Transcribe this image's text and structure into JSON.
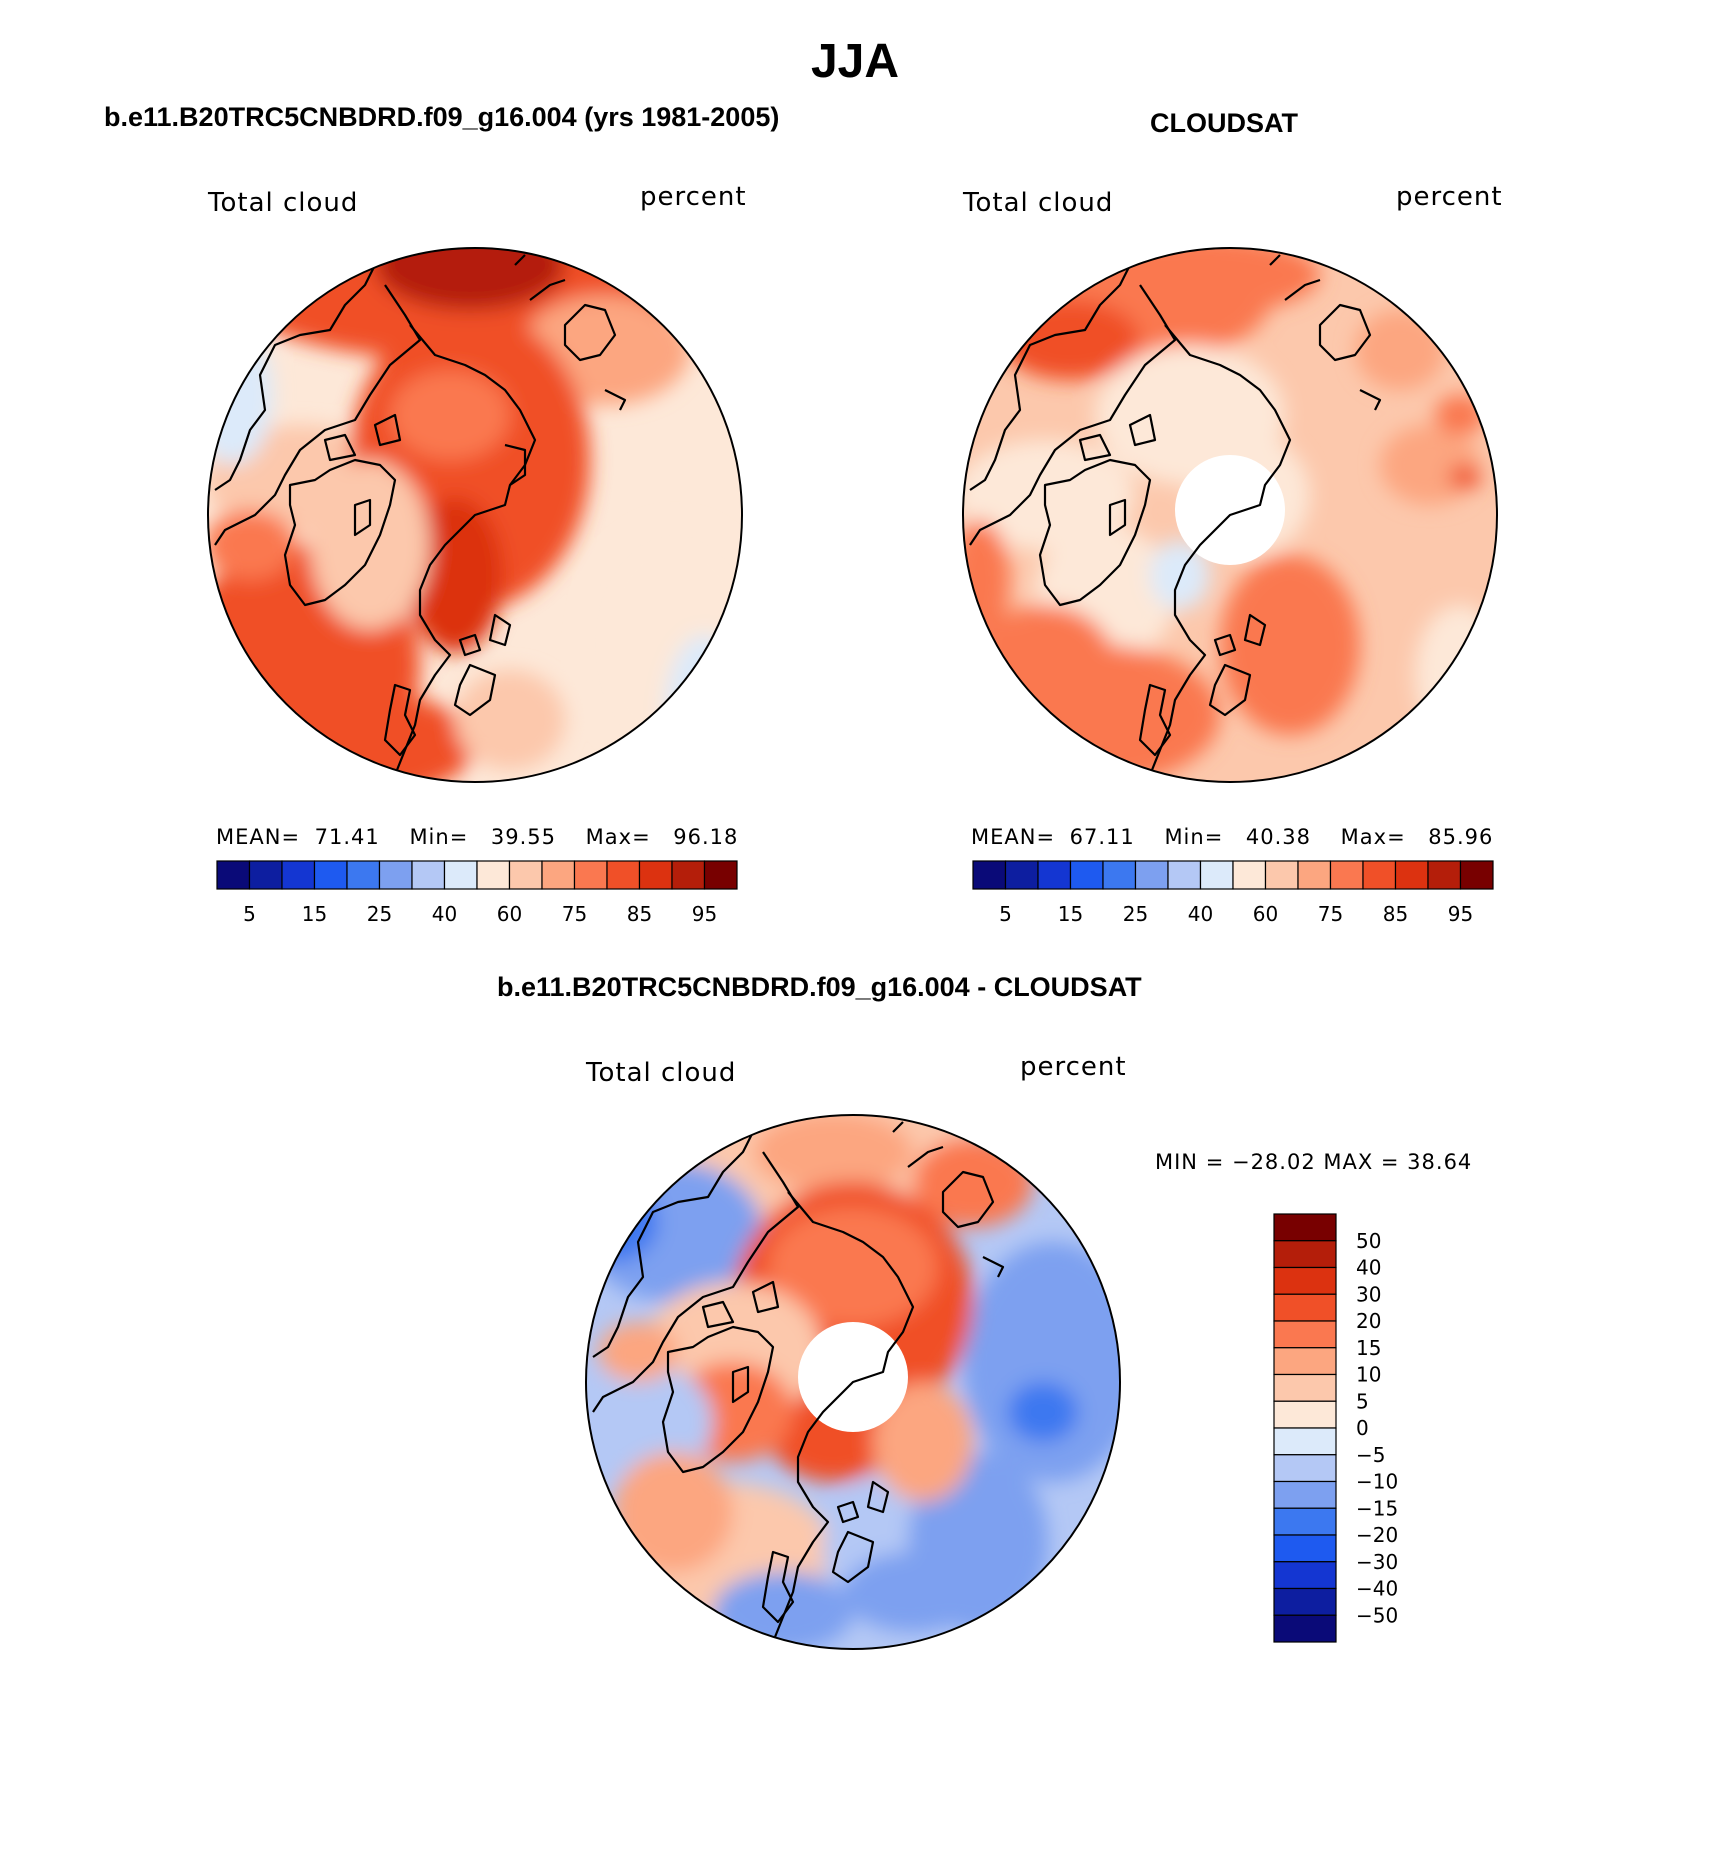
{
  "title": "JJA",
  "panels": [
    {
      "id": "model",
      "title": "b.e11.B20TRC5CNBDRD.f09_g16.004 (yrs 1981-2005)",
      "left_label": "Total cloud",
      "right_label": "percent",
      "stats": {
        "mean_label": "MEAN=",
        "mean": "71.41",
        "min_label": "Min=",
        "min": "39.55",
        "max_label": "Max=",
        "max": "96.18"
      }
    },
    {
      "id": "obs",
      "title": "CLOUDSAT",
      "left_label": "Total cloud",
      "right_label": "percent",
      "stats": {
        "mean_label": "MEAN=",
        "mean": "67.11",
        "min_label": "Min=",
        "min": "40.38",
        "max_label": "Max=",
        "max": "85.96"
      }
    },
    {
      "id": "diff",
      "title": "b.e11.B20TRC5CNBDRD.f09_g16.004 - CLOUDSAT",
      "left_label": "Total cloud",
      "right_label": "percent",
      "minmax_text": "MIN = −28.02 MAX =   38.64"
    }
  ],
  "abs_colorbar": {
    "colors": [
      "#0a0a78",
      "#0d1ea0",
      "#1436d2",
      "#1e5af0",
      "#3c78f0",
      "#7da0f0",
      "#b4c8f5",
      "#dceafa",
      "#fde8d8",
      "#fcc8ac",
      "#fca680",
      "#fa7850",
      "#f05028",
      "#dc3210",
      "#b41e0a",
      "#780000"
    ],
    "tick_labels": [
      "5",
      "15",
      "25",
      "40",
      "60",
      "75",
      "85",
      "95"
    ]
  },
  "diff_colorbar": {
    "colors": [
      "#780000",
      "#b41e0a",
      "#dc3210",
      "#f05028",
      "#fa7850",
      "#fca680",
      "#fcc8ac",
      "#fde8d8",
      "#dceafa",
      "#b4c8f5",
      "#7da0f0",
      "#3c78f0",
      "#1e5af0",
      "#1436d2",
      "#0d1ea0",
      "#0a0a78"
    ],
    "tick_labels": [
      "50",
      "40",
      "30",
      "20",
      "15",
      "10",
      "5",
      "0",
      "−5",
      "−10",
      "−15",
      "−20",
      "−30",
      "−40",
      "−50"
    ]
  },
  "icons": [
    "polar-stereographic-map",
    "coastline-outline"
  ]
}
